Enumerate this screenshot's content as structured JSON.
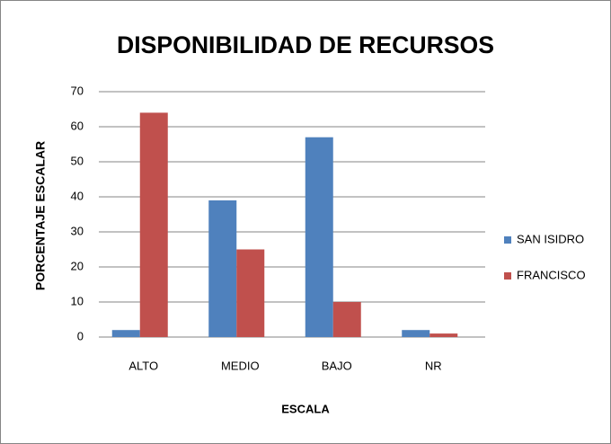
{
  "chart_data": {
    "type": "bar",
    "title": "DISPONIBILIDAD DE RECURSOS",
    "x_label": "ESCALA",
    "y_label": "PORCENTAJE ESCALAR",
    "categories": [
      "ALTO",
      "MEDIO",
      "BAJO",
      "NR"
    ],
    "series": [
      {
        "name": "SAN ISIDRO",
        "color": "#4f81bd",
        "values": [
          2,
          39,
          57,
          2
        ]
      },
      {
        "name": "FRANCISCO",
        "color": "#c0504d",
        "values": [
          64,
          25,
          10,
          1
        ]
      }
    ],
    "ylim": [
      0,
      70
    ],
    "yticks": [
      0,
      10,
      20,
      30,
      40,
      50,
      60,
      70
    ],
    "grid": true,
    "legend": "right"
  }
}
